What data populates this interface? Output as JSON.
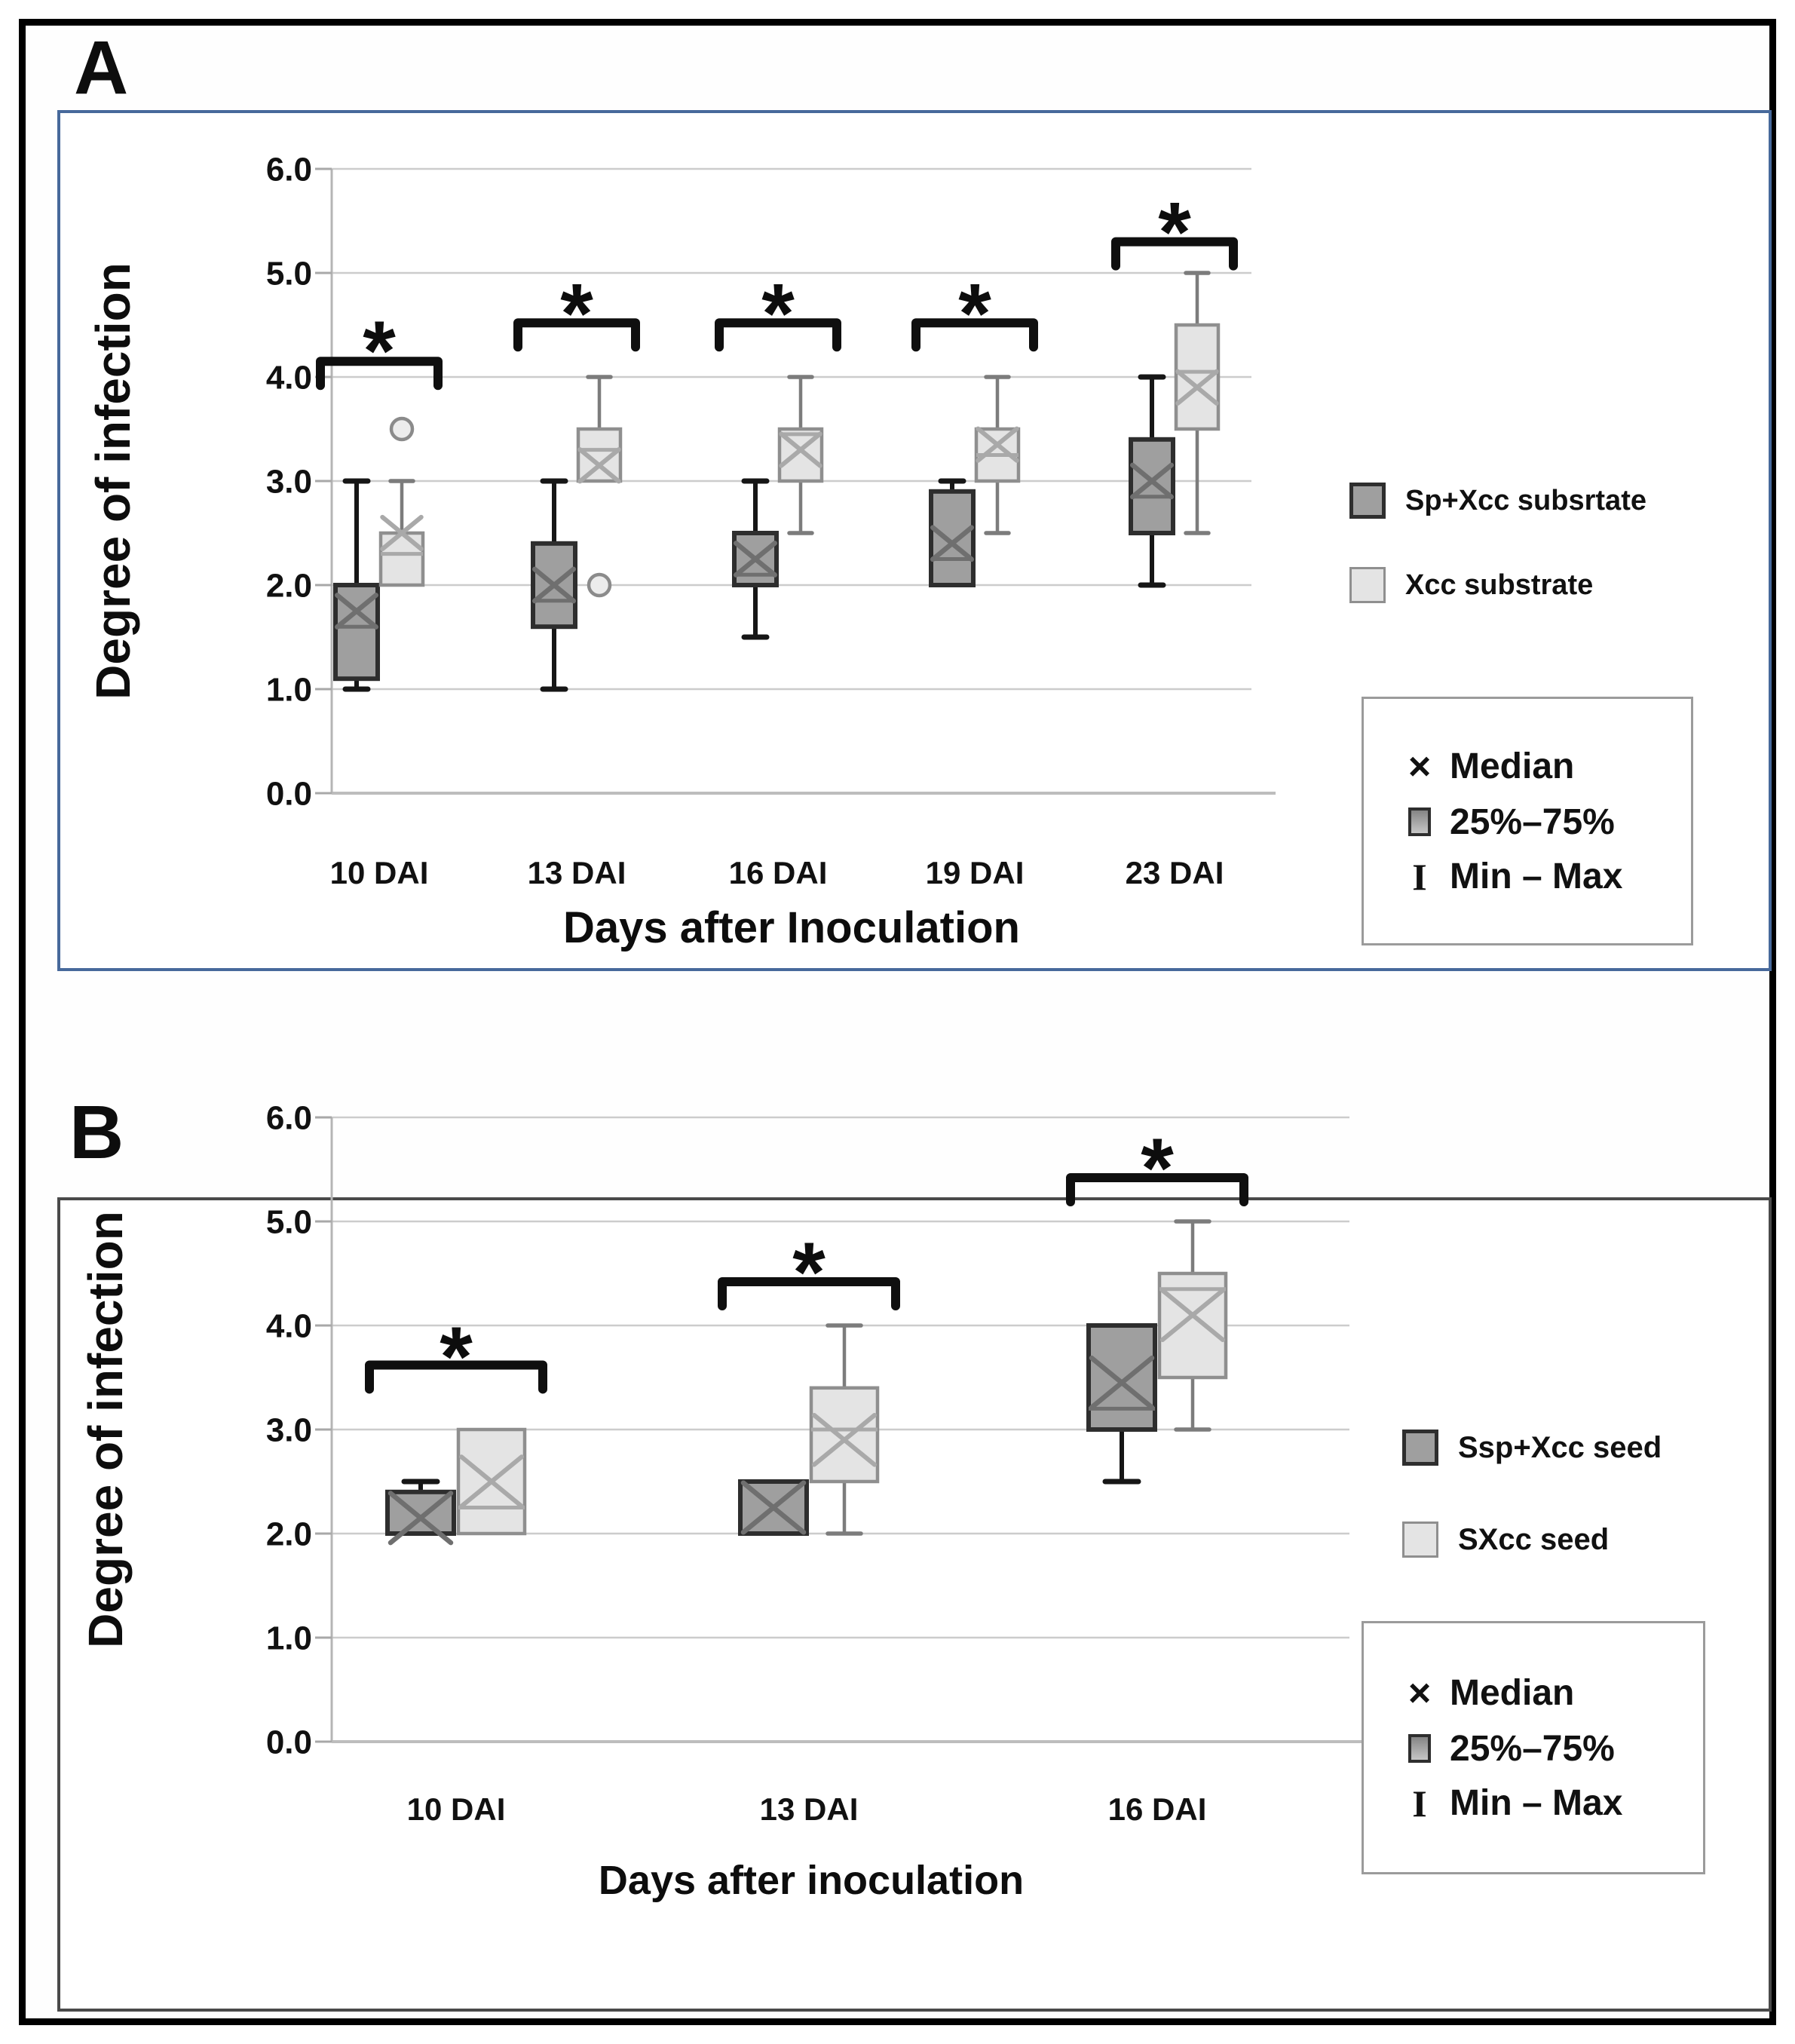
{
  "figure": {
    "panel_a_label": "A",
    "panel_b_label": "B",
    "frame_color": "#000000"
  },
  "panel_a": {
    "label": "A",
    "border_color": "#47699b",
    "y_axis_title": "Degree of infection",
    "x_axis_title": "Days after Inoculation",
    "legend": {
      "series": [
        {
          "label": "Sp+Xcc subsrtate",
          "fill": "#9f9f9f",
          "border": "#2e2e2e"
        },
        {
          "label": "Xcc substrate",
          "fill": "#e4e4e4",
          "border": "#8f8f8f"
        }
      ],
      "stats": {
        "median_symbol": "×",
        "median_label": "Median",
        "iqr_label": "25%–75%",
        "range_symbol": "I",
        "range_label": "Min – Max"
      }
    }
  },
  "panel_b": {
    "label": "B",
    "border_color": "#4a4a4a",
    "y_axis_title": "Degree of infection",
    "x_axis_title": "Days after inoculation",
    "legend": {
      "series": [
        {
          "label": "Ssp+Xcc seed",
          "fill": "#9f9f9f",
          "border": "#2e2e2e"
        },
        {
          "label": "SXcc seed",
          "fill": "#e4e4e4",
          "border": "#8f8f8f"
        }
      ],
      "stats": {
        "median_symbol": "×",
        "median_label": "Median",
        "iqr_label": "25%–75%",
        "range_symbol": "I",
        "range_label": "Min – Max"
      }
    }
  },
  "chart_data": [
    {
      "type": "box",
      "panel": "A",
      "title": "",
      "ylabel": "Degree of infection",
      "xlabel": "Days after Inoculation",
      "ylim": [
        0,
        6
      ],
      "yticks": [
        "6.0",
        "5.0",
        "4.0",
        "3.0",
        "2.0",
        "1.0",
        "0.0"
      ],
      "grid": true,
      "legend_position": "right",
      "categories": [
        "10 DAI",
        "13 DAI",
        "16 DAI",
        "19 DAI",
        "23 DAI"
      ],
      "series": [
        {
          "name": "Sp+Xcc subsrtate",
          "role": "dark",
          "boxes": [
            {
              "min": 1.0,
              "q1": 1.1,
              "line": 1.6,
              "median": 1.75,
              "q3": 2.0,
              "max": 3.0,
              "outlier": null
            },
            {
              "min": 1.0,
              "q1": 1.6,
              "line": 1.85,
              "median": 2.0,
              "q3": 2.4,
              "max": 3.0,
              "outlier": null
            },
            {
              "min": 1.5,
              "q1": 2.0,
              "line": 2.1,
              "median": 2.25,
              "q3": 2.5,
              "max": 3.0,
              "outlier": null
            },
            {
              "min": 2.0,
              "q1": 2.0,
              "line": 2.25,
              "median": 2.4,
              "q3": 2.9,
              "max": 3.0,
              "outlier": null
            },
            {
              "min": 2.0,
              "q1": 2.5,
              "line": 2.85,
              "median": 3.0,
              "q3": 3.4,
              "max": 4.0,
              "outlier": null
            }
          ]
        },
        {
          "name": "Xcc substrate",
          "role": "light",
          "boxes": [
            {
              "min": 2.0,
              "q1": 2.0,
              "line": 2.3,
              "median": 2.5,
              "q3": 2.5,
              "max": 3.0,
              "outlier": 3.5
            },
            {
              "min": 3.0,
              "q1": 3.0,
              "line": 3.3,
              "median": 3.15,
              "q3": 3.5,
              "max": 4.0,
              "outlier": 2.0
            },
            {
              "min": 2.5,
              "q1": 3.0,
              "line": 3.45,
              "median": 3.3,
              "q3": 3.5,
              "max": 4.0,
              "outlier": null
            },
            {
              "min": 2.5,
              "q1": 3.0,
              "line": 3.25,
              "median": 3.35,
              "q3": 3.5,
              "max": 4.0,
              "outlier": null
            },
            {
              "min": 2.5,
              "q1": 3.5,
              "line": 4.05,
              "median": 3.9,
              "q3": 4.5,
              "max": 5.0,
              "outlier": null
            }
          ]
        }
      ],
      "significance": [
        {
          "category": "10 DAI",
          "label": "*",
          "bar": 4.15,
          "star": 4.5
        },
        {
          "category": "13 DAI",
          "label": "*",
          "bar": 4.52,
          "star": 4.86
        },
        {
          "category": "16 DAI",
          "label": "*",
          "bar": 4.52,
          "star": 4.86
        },
        {
          "category": "19 DAI",
          "label": "*",
          "bar": 4.52,
          "star": 4.86
        },
        {
          "category": "23 DAI",
          "label": "*",
          "bar": 5.3,
          "star": 5.64
        }
      ]
    },
    {
      "type": "box",
      "panel": "B",
      "title": "",
      "ylabel": "Degree of infection",
      "xlabel": "Days after inoculation",
      "ylim": [
        0,
        6
      ],
      "yticks": [
        "6.0",
        "5.0",
        "4.0",
        "3.0",
        "2.0",
        "1.0",
        "0.0"
      ],
      "grid": true,
      "legend_position": "right",
      "categories": [
        "10 DAI",
        "13 DAI",
        "16 DAI"
      ],
      "series": [
        {
          "name": "Ssp+Xcc seed",
          "role": "dark",
          "boxes": [
            {
              "min": 2.0,
              "q1": 2.0,
              "line": null,
              "median": 2.15,
              "q3": 2.4,
              "max": 2.5,
              "outlier": null
            },
            {
              "min": 2.0,
              "q1": 2.0,
              "line": null,
              "median": 2.25,
              "q3": 2.5,
              "max": 2.5,
              "outlier": null
            },
            {
              "min": 2.5,
              "q1": 3.0,
              "line": 3.2,
              "median": 3.45,
              "q3": 4.0,
              "max": 4.0,
              "outlier": null
            }
          ]
        },
        {
          "name": "SXcc seed",
          "role": "light",
          "boxes": [
            {
              "min": 2.0,
              "q1": 2.0,
              "line": 2.25,
              "median": 2.5,
              "q3": 3.0,
              "max": 3.0,
              "outlier": null
            },
            {
              "min": 2.0,
              "q1": 2.5,
              "line": 3.0,
              "median": 2.9,
              "q3": 3.4,
              "max": 4.0,
              "outlier": null
            },
            {
              "min": 3.0,
              "q1": 3.5,
              "line": 4.35,
              "median": 4.1,
              "q3": 4.5,
              "max": 5.0,
              "outlier": null
            }
          ]
        }
      ],
      "significance": [
        {
          "category": "10 DAI",
          "label": "*",
          "bar": 3.62,
          "star": 3.95
        },
        {
          "category": "13 DAI",
          "label": "*",
          "bar": 4.42,
          "star": 4.76
        },
        {
          "category": "16 DAI",
          "label": "*",
          "bar": 5.42,
          "star": 5.76
        }
      ]
    }
  ]
}
